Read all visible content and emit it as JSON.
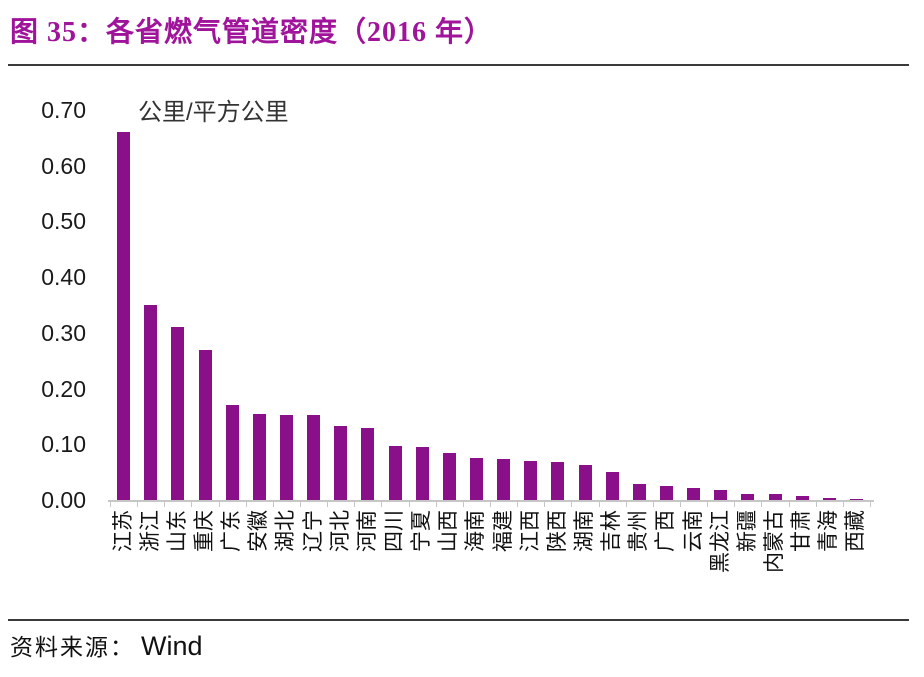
{
  "figure": {
    "title": "图 35：各省燃气管道密度（2016 年）",
    "source_label": "资料来源：",
    "source_value": "Wind"
  },
  "colors": {
    "title_color": "#A0149B",
    "bar_color": "#8A108A",
    "axis_color": "#C6C6C6",
    "rule_color": "#3A3A3A",
    "text_color": "#111111"
  },
  "chart_data": {
    "type": "bar",
    "title": "各省燃气管道密度（2016 年）",
    "unit_label": "公里/平方公里",
    "xlabel": "",
    "ylabel": "公里/平方公里",
    "ylim": [
      0,
      0.7
    ],
    "ytick_labels": [
      "0.70",
      "0.60",
      "0.50",
      "0.40",
      "0.30",
      "0.20",
      "0.10",
      "0.00"
    ],
    "grid": false,
    "legend_position": "none",
    "categories": [
      "江苏",
      "浙江",
      "山东",
      "重庆",
      "广东",
      "安徽",
      "湖北",
      "辽宁",
      "河北",
      "河南",
      "四川",
      "宁夏",
      "山西",
      "海南",
      "福建",
      "江西",
      "陕西",
      "湖南",
      "吉林",
      "贵州",
      "广西",
      "云南",
      "黑龙江",
      "新疆",
      "内蒙古",
      "甘肃",
      "青海",
      "西藏"
    ],
    "values": [
      0.66,
      0.35,
      0.31,
      0.27,
      0.17,
      0.155,
      0.152,
      0.152,
      0.132,
      0.13,
      0.097,
      0.096,
      0.085,
      0.075,
      0.073,
      0.07,
      0.068,
      0.062,
      0.05,
      0.029,
      0.025,
      0.022,
      0.018,
      0.01,
      0.01,
      0.008,
      0.004,
      0.002
    ]
  }
}
